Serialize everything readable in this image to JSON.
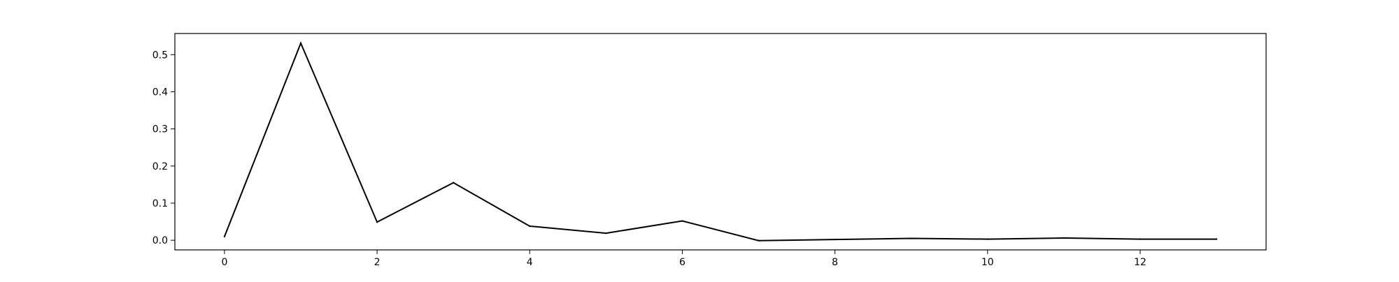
{
  "chart_data": {
    "type": "line",
    "title": "",
    "xlabel": "",
    "ylabel": "",
    "x": [
      0,
      1,
      2,
      3,
      4,
      5,
      6,
      7,
      8,
      9,
      10,
      11,
      12,
      13
    ],
    "series": [
      {
        "values": [
          0.01,
          0.531,
          0.049,
          0.155,
          0.038,
          0.019,
          0.052,
          -0.001,
          0.002,
          0.005,
          0.003,
          0.006,
          0.003,
          0.003
        ],
        "color": "#000000"
      }
    ],
    "xlim": [
      -0.65,
      13.65
    ],
    "ylim": [
      -0.026,
      0.557
    ],
    "xticks": [
      0,
      2,
      4,
      6,
      8,
      10,
      12
    ],
    "xtick_labels": [
      "0",
      "2",
      "4",
      "6",
      "8",
      "10",
      "12"
    ],
    "yticks": [
      0.0,
      0.1,
      0.2,
      0.3,
      0.4,
      0.5
    ],
    "ytick_labels": [
      "0.0",
      "0.1",
      "0.2",
      "0.3",
      "0.4",
      "0.5"
    ],
    "grid": false,
    "legend": "none"
  }
}
